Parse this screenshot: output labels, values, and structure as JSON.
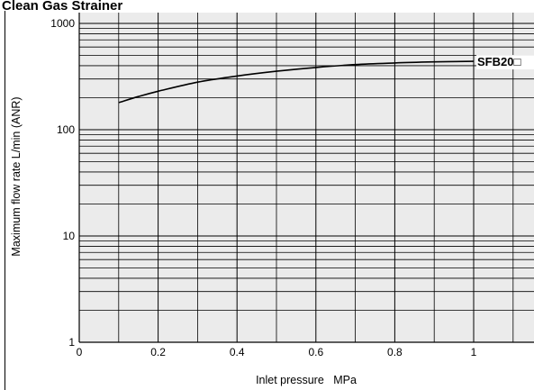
{
  "header": {
    "title": "Clean Gas Strainer"
  },
  "chart_data": {
    "type": "line",
    "title": "Clean Gas Strainer",
    "xlabel": "Inlet pressure   MPa",
    "ylabel": "Maximum flow rate   L/min (ANR)",
    "xlim": [
      0,
      1.15
    ],
    "ylim": [
      1,
      1400
    ],
    "y_scale": "log",
    "grid": true,
    "x_ticks": [
      0,
      0.2,
      0.4,
      0.6,
      0.8,
      1
    ],
    "x_tick_labels": [
      "0",
      "0.2",
      "0.4",
      "0.6",
      "0.8",
      "1"
    ],
    "y_ticks": [
      1,
      10,
      100,
      1000
    ],
    "y_tick_labels": [
      "1",
      "10",
      "100",
      "1000"
    ],
    "colors": {
      "plot_background": "#ebebeb",
      "grid": "#000000",
      "line": "#000000"
    },
    "series": [
      {
        "name": "SFB20□",
        "x": [
          0.1,
          0.15,
          0.2,
          0.3,
          0.4,
          0.5,
          0.6,
          0.7,
          0.8,
          0.9,
          1.0
        ],
        "y": [
          180,
          205,
          230,
          280,
          320,
          355,
          385,
          410,
          425,
          435,
          440
        ]
      }
    ]
  }
}
